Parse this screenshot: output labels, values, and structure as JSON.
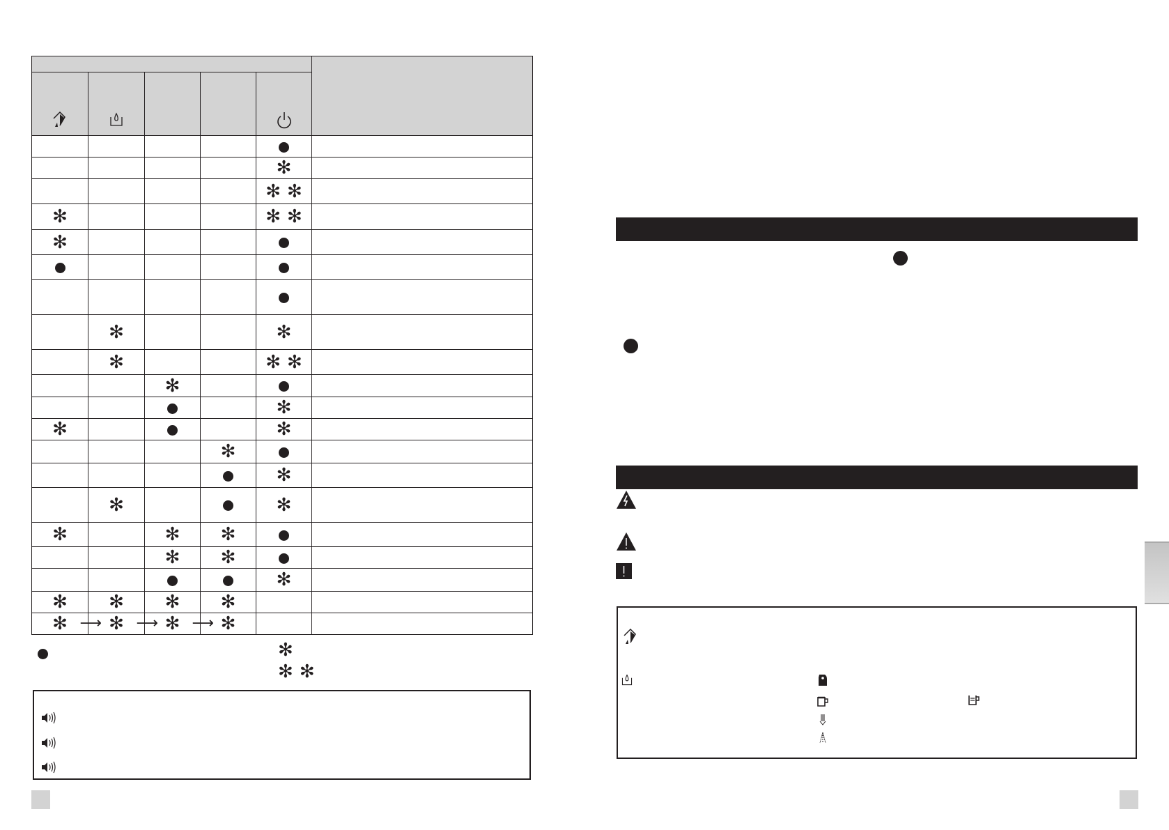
{
  "colors": {
    "ink": "#231f20",
    "header_fill": "#d3d3d3",
    "tab_fill": "#d0d0d0"
  },
  "table": {
    "header_icons": [
      "descale-icon",
      "water-tank-icon",
      "",
      "",
      "power-icon"
    ],
    "rows": [
      [
        "",
        "",
        "",
        "",
        "dot"
      ],
      [
        "",
        "",
        "",
        "",
        "star"
      ],
      [
        "",
        "",
        "",
        "",
        "star2"
      ],
      [
        "star",
        "",
        "",
        "",
        "star2"
      ],
      [
        "star",
        "",
        "",
        "",
        "dot"
      ],
      [
        "dot",
        "",
        "",
        "",
        "dot"
      ],
      [
        "",
        "",
        "",
        "",
        "dot"
      ],
      [
        "",
        "star",
        "",
        "",
        "star"
      ],
      [
        "",
        "star",
        "",
        "",
        "star2"
      ],
      [
        "",
        "",
        "star",
        "",
        "dot"
      ],
      [
        "",
        "",
        "dot",
        "",
        "star"
      ],
      [
        "star",
        "",
        "dot",
        "",
        "star"
      ],
      [
        "",
        "",
        "",
        "star",
        "dot"
      ],
      [
        "",
        "",
        "",
        "dot",
        "star"
      ],
      [
        "",
        "star",
        "",
        "dot",
        "star"
      ],
      [
        "star",
        "",
        "star",
        "star",
        "dot"
      ],
      [
        "",
        "",
        "star",
        "star",
        "dot"
      ],
      [
        "",
        "",
        "dot",
        "dot",
        "star"
      ],
      [
        "star",
        "star",
        "star",
        "star",
        ""
      ],
      [
        "star-seq",
        "star-seq",
        "star-seq",
        "star",
        ""
      ]
    ]
  },
  "legend": {
    "symbols": [
      "dot",
      "star",
      "star2"
    ]
  },
  "sound_box": {
    "icons": [
      "speaker-icon",
      "speaker-icon",
      "speaker-icon"
    ]
  },
  "right_page": {
    "warning_icons": [
      "electric-hazard-icon",
      "warning-triangle-icon",
      "exclamation-icon"
    ],
    "info_icons": [
      "descale-icon",
      "water-tank-icon",
      "coffee-pot-icon",
      "mug-icon",
      "tall-mug-icon",
      "steam-down-icon",
      "steam-icon"
    ]
  },
  "glyphs": {
    "star": "✻",
    "arrow": "⟶"
  }
}
